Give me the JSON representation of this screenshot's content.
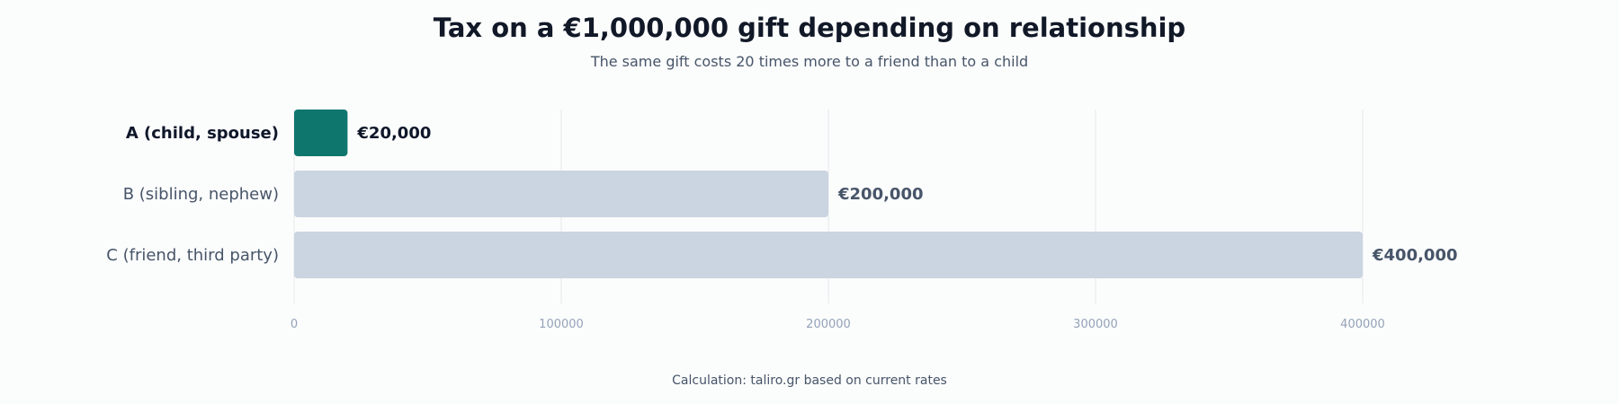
{
  "title": "Tax on a €1,000,000 gift depending on relationship",
  "subtitle": "The same gift costs 20 times more to a friend than to a child",
  "footer": "Calculation: taliro.gr based on current rates",
  "colors": {
    "highlight": "#0f766e",
    "muted": "#cbd5e1",
    "grid": "#e5e7eb",
    "tick_text": "#94a3b8",
    "label_highlight": "#0f172a",
    "label_muted": "#475569"
  },
  "chart_data": {
    "type": "bar",
    "orientation": "horizontal",
    "categories": [
      "A (child, spouse)",
      "B (sibling, nephew)",
      "C (friend, third party)"
    ],
    "values": [
      20000,
      200000,
      400000
    ],
    "value_labels": [
      "€20,000",
      "€200,000",
      "€400,000"
    ],
    "highlighted": [
      true,
      false,
      false
    ],
    "xlim": [
      0,
      400000
    ],
    "xticks": [
      0,
      100000,
      200000,
      300000,
      400000
    ],
    "xtick_labels": [
      "0",
      "100000",
      "200000",
      "300000",
      "400000"
    ],
    "grid": "vertical",
    "xlabel": "",
    "ylabel": ""
  }
}
